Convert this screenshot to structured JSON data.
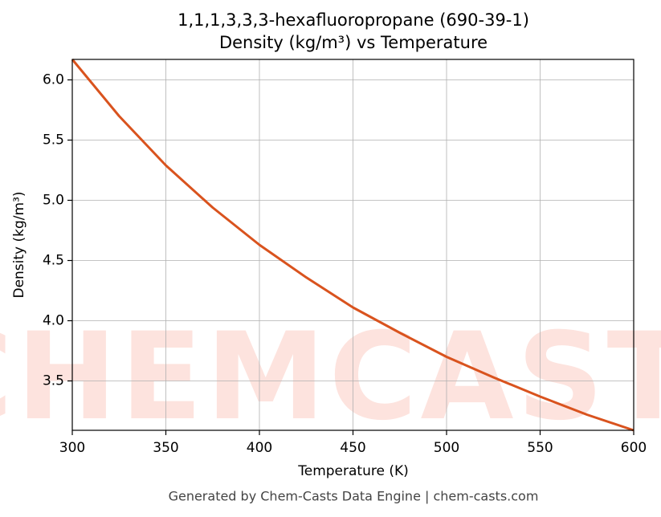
{
  "chart_data": {
    "type": "line",
    "title": "1,1,1,3,3,3-hexafluoropropane (690-39-1)",
    "subtitle": "Density (kg/m³) vs Temperature",
    "x_label": "Temperature (K)",
    "y_label": "Density (kg/m³)",
    "footer": "Generated by Chem-Casts Data Engine | chem-casts.com",
    "watermark": "CHEMCASTS",
    "x": [
      300,
      325,
      350,
      375,
      400,
      425,
      450,
      475,
      500,
      525,
      550,
      575,
      600
    ],
    "series": [
      {
        "name": "Density",
        "color": "#d9531e",
        "values": [
          6.17,
          5.7,
          5.29,
          4.94,
          4.63,
          4.36,
          4.11,
          3.9,
          3.7,
          3.53,
          3.37,
          3.22,
          3.09
        ]
      }
    ],
    "xlim": [
      300,
      600
    ],
    "ylim": [
      3.09,
      6.17
    ],
    "xticks": [
      300,
      350,
      400,
      450,
      500,
      550,
      600
    ],
    "yticks": [
      {
        "value": 3.5,
        "label": "3.5"
      },
      {
        "value": 4,
        "label": "4.0"
      },
      {
        "value": 4.5,
        "label": "4.5"
      },
      {
        "value": 5,
        "label": "5.0"
      },
      {
        "value": 5.5,
        "label": "5.5"
      },
      {
        "value": 6,
        "label": "6.0"
      }
    ],
    "grid": true
  }
}
